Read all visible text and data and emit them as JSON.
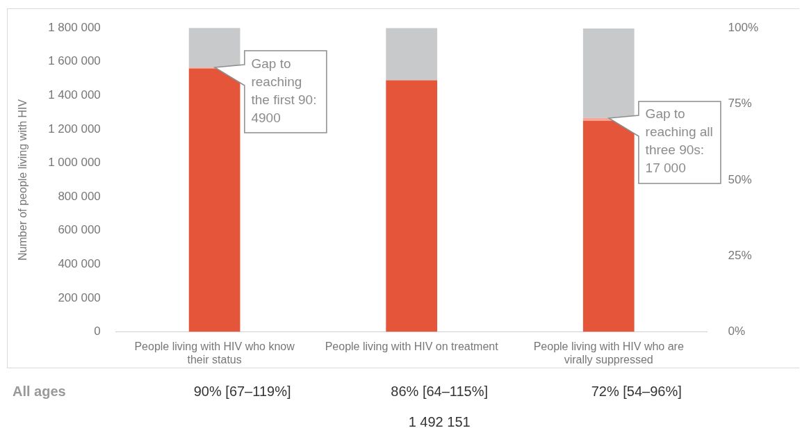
{
  "chart_data": {
    "type": "bar",
    "stacked": true,
    "ylabel": "Number of people living with HIV",
    "categories": [
      "People living with HIV who know their status",
      "People living with HIV on treatment",
      "People living with HIV who are virally suppressed"
    ],
    "series": [
      {
        "color": "#e4553a",
        "values": [
          1560000,
          1490000,
          1250000
        ]
      },
      {
        "color": "#f4a799",
        "values": [
          4900,
          0,
          17000
        ]
      },
      {
        "color": "#c8c9cb",
        "values": [
          240000,
          310000,
          530000
        ]
      }
    ],
    "ylim": [
      0,
      1800000
    ],
    "yticks": [
      {
        "value": 0,
        "label": "0"
      },
      {
        "value": 200000,
        "label": "200 000"
      },
      {
        "value": 400000,
        "label": "400 000"
      },
      {
        "value": 600000,
        "label": "600 000"
      },
      {
        "value": 800000,
        "label": "800 000"
      },
      {
        "value": 1000000,
        "label": "1 000 000"
      },
      {
        "value": 1200000,
        "label": "1 200 000"
      },
      {
        "value": 1400000,
        "label": "1 400 000"
      },
      {
        "value": 1600000,
        "label": "1 600 000"
      },
      {
        "value": 1800000,
        "label": "1 800 000"
      }
    ],
    "y2lim": [
      0,
      100
    ],
    "y2ticks": [
      {
        "value": 0,
        "label": "0%"
      },
      {
        "value": 25,
        "label": "25%"
      },
      {
        "value": 50,
        "label": "50%"
      },
      {
        "value": 75,
        "label": "75%"
      },
      {
        "value": 100,
        "label": "100%"
      }
    ],
    "grid": false,
    "legend": false,
    "annotations": [
      {
        "text": "Gap to reaching the first 90: 4900",
        "x": "People living with HIV who know their status",
        "y": 1564900
      },
      {
        "text": "Gap to reaching all three 90s: 17 000",
        "x": "People living with HIV who are virally suppressed",
        "y": 1267000
      },
      "All ages",
      "90% [67–119%]",
      "86% [64–115%]",
      "72% [54–96%]",
      "1 492 151"
    ]
  }
}
